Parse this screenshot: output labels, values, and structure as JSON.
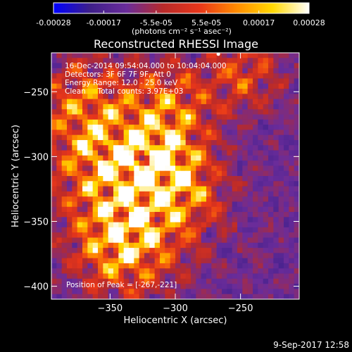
{
  "chart_data": {
    "type": "heatmap",
    "title": "Reconstructed RHESSI Image",
    "xlabel": "Heliocentric X (arcsec)",
    "ylabel": "Heliocentric Y (arcsec)",
    "xlim": [
      -395,
      -205
    ],
    "ylim": [
      -410,
      -220
    ],
    "x_ticks": [
      -350,
      -300,
      -250
    ],
    "y_ticks": [
      -400,
      -350,
      -300,
      -250
    ],
    "colorbar": {
      "min": -0.00028,
      "max": 0.00028,
      "ticks": [
        -0.00028,
        -0.00017,
        -5.5e-05,
        5.5e-05,
        0.00017,
        0.00028
      ],
      "tick_labels": [
        "-0.00028",
        "-0.00017",
        "-5.5e-05",
        "5.5e-05",
        "0.00017",
        "0.00028"
      ],
      "unit_label": "(photons cm⁻² s⁻¹ asec⁻²)",
      "colormap": [
        "#0000ff",
        "#3e1f8a",
        "#6a2c9a",
        "#b82a2a",
        "#e8361a",
        "#ff8a00",
        "#ffd800",
        "#ffffff"
      ]
    },
    "annotations": {
      "line1": "16-Dec-2014 09:54:04.000 to 10:04:04.000",
      "line2": "Detectors: 3F 6F 7F 9F, Att 0",
      "line3": "Energy Range: 12.0 - 25.0 keV",
      "line4": "Clean     Total counts: 3.97E+03",
      "peak": "Position of Peak = [-267,-221]"
    },
    "peak_position": [
      -267,
      -221
    ]
  },
  "footer": {
    "timestamp": "9-Sep-2017 12:58"
  }
}
